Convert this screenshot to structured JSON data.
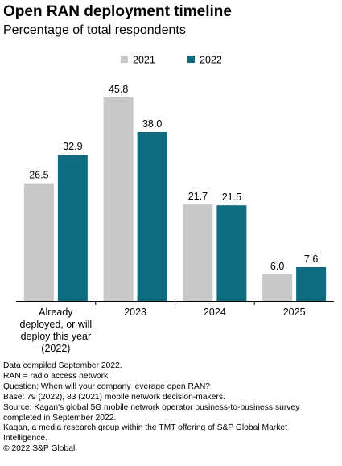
{
  "chart_data": {
    "type": "bar",
    "title": "Open RAN deployment timeline",
    "subtitle": "Percentage of total respondents",
    "categories": [
      "Already\ndeployed, or will\ndeploy this year\n(2022)",
      "2023",
      "2024",
      "2025"
    ],
    "series": [
      {
        "name": "2021",
        "values": [
          26.5,
          45.8,
          21.7,
          6.0
        ]
      },
      {
        "name": "2022",
        "values": [
          32.9,
          38.0,
          21.5,
          7.6
        ]
      }
    ],
    "colors": {
      "2021": "#c8c8c8",
      "2022": "#0f6b80"
    },
    "ylim": [
      0,
      46.5
    ],
    "legend_position": "top",
    "grid": false
  },
  "footnotes": [
    "Data compiled September 2022.",
    "RAN = radio access network.",
    "Question: When will your company leverage open RAN?",
    "Base: 79 (2022), 83 (2021) mobile network decision-makers.",
    "Source: Kagan's global 5G mobile network operator business-to-business survey\ncompleted in September 2022.",
    "Kagan, a media research group within the TMT offering of S&P Global Market\nIntelligence.",
    "© 2022 S&P Global."
  ]
}
